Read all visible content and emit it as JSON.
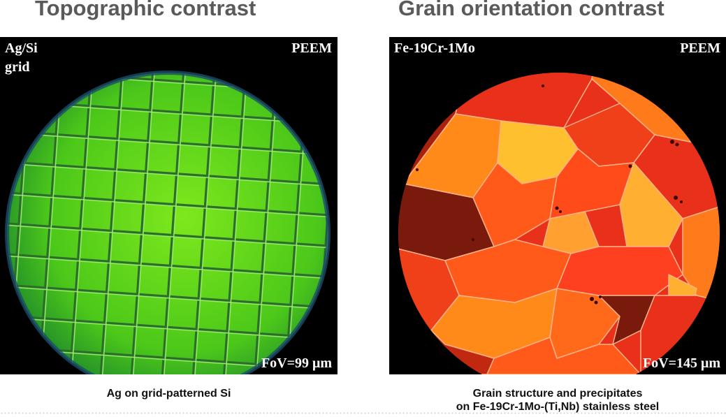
{
  "left": {
    "title": "Topographic contrast",
    "sample_label_line1": "Ag/Si",
    "sample_label_line2": "grid",
    "method_label": "PEEM",
    "fov_label": "FoV=99 μm",
    "caption": "Ag on grid-patterned Si",
    "colors": {
      "background": "#000000",
      "grid_fill": "#5fd21a",
      "grid_line": "#2f7d2a"
    }
  },
  "right": {
    "title": "Grain orientation contrast",
    "sample_label": "Fe-19Cr-1Mo",
    "method_label": "PEEM",
    "fov_label": "FoV=145 μm",
    "caption_line1": "Grain structure and precipitates",
    "caption_line2": "on Fe-19Cr-1Mo-(Ti,Nb) stainless steel",
    "colors": {
      "background": "#000000",
      "dark_grain": "#8a1a0a",
      "red_grain": "#e8301a",
      "orange_grain": "#ff7a1a",
      "yellow_grain": "#ffc030"
    }
  }
}
